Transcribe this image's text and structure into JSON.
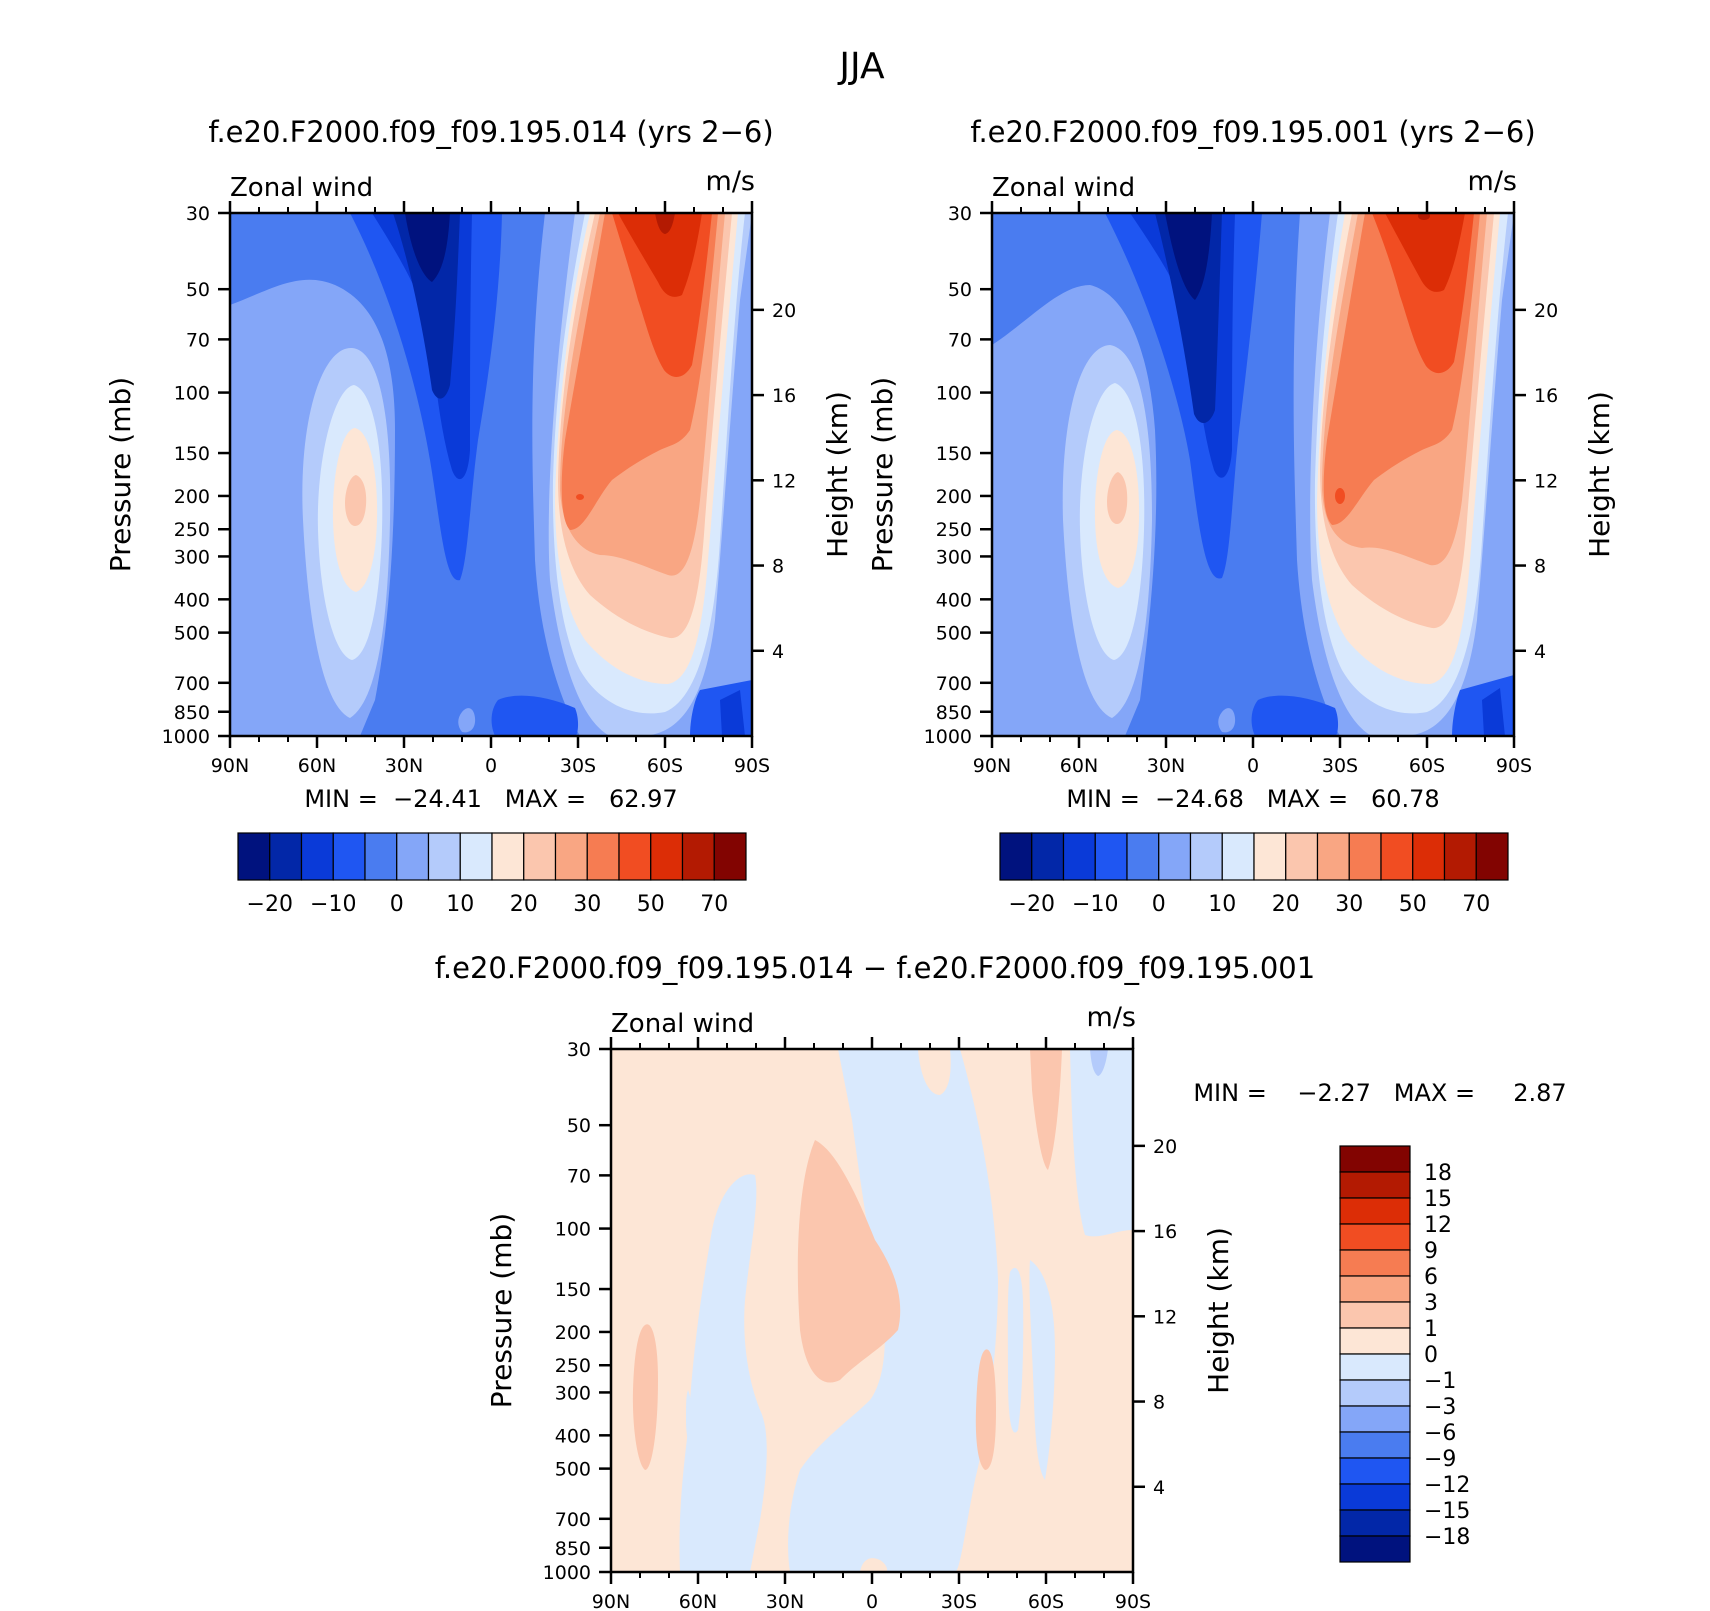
{
  "page_title": "JJA",
  "panels": [
    {
      "title": "f.e20.F2000.f09_f09.195.014 (yrs 2−6)",
      "left_label": "Zonal wind",
      "right_label": "m/s",
      "min_max": "MIN =  −24.41   MAX =   62.97"
    },
    {
      "title": "f.e20.F2000.f09_f09.195.001 (yrs 2−6)",
      "left_label": "Zonal wind",
      "right_label": "m/s",
      "min_max": "MIN =  −24.68   MAX =   60.78"
    },
    {
      "title": "f.e20.F2000.f09_f09.195.014 − f.e20.F2000.f09_f09.195.001",
      "left_label": "Zonal wind",
      "right_label": "m/s",
      "min_max": "MIN =    −2.27   MAX =     2.87"
    }
  ],
  "chart_data": {
    "type": "heatmap",
    "x_ticks": [
      "90N",
      "60N",
      "30N",
      "0",
      "30S",
      "60S",
      "90S"
    ],
    "x_range": [
      90,
      -90
    ],
    "y_ticks": [
      "30",
      "50",
      "70",
      "100",
      "150",
      "200",
      "250",
      "300",
      "400",
      "500",
      "700",
      "850",
      "1000"
    ],
    "y_range_mb": [
      1000,
      30
    ],
    "y_scale": "log",
    "ylabel": "Pressure (mb)",
    "ylabel2": "Height (km)",
    "y2_ticks": [
      "4",
      "8",
      "12",
      "16",
      "20"
    ],
    "colorbar_main": {
      "orientation": "horizontal",
      "labels": [
        "−20",
        "−10",
        "0",
        "10",
        "20",
        "30",
        "50",
        "70"
      ],
      "colors": [
        "#00127e",
        "#0227a8",
        "#0a3ad8",
        "#1f56f2",
        "#4a7cf0",
        "#84a6f8",
        "#b4cbfb",
        "#d9e9fd",
        "#fde6d6",
        "#fbc6ae",
        "#f9a683",
        "#f67c52",
        "#f14d22",
        "#dc2d06",
        "#b31a02",
        "#820401"
      ]
    },
    "colorbar_diff": {
      "orientation": "vertical",
      "labels": [
        "18",
        "15",
        "12",
        "9",
        "6",
        "3",
        "1",
        "0",
        "−1",
        "−3",
        "−6",
        "−9",
        "−12",
        "−15",
        "−18"
      ],
      "colors": [
        "#820401",
        "#b31a02",
        "#dc2d06",
        "#f14d22",
        "#f67c52",
        "#f9a683",
        "#fbc6ae",
        "#fde6d6",
        "#d9e9fd",
        "#b4cbfb",
        "#84a6f8",
        "#4a7cf0",
        "#1f56f2",
        "#0a3ad8",
        "#0227a8",
        "#00127e"
      ]
    }
  }
}
